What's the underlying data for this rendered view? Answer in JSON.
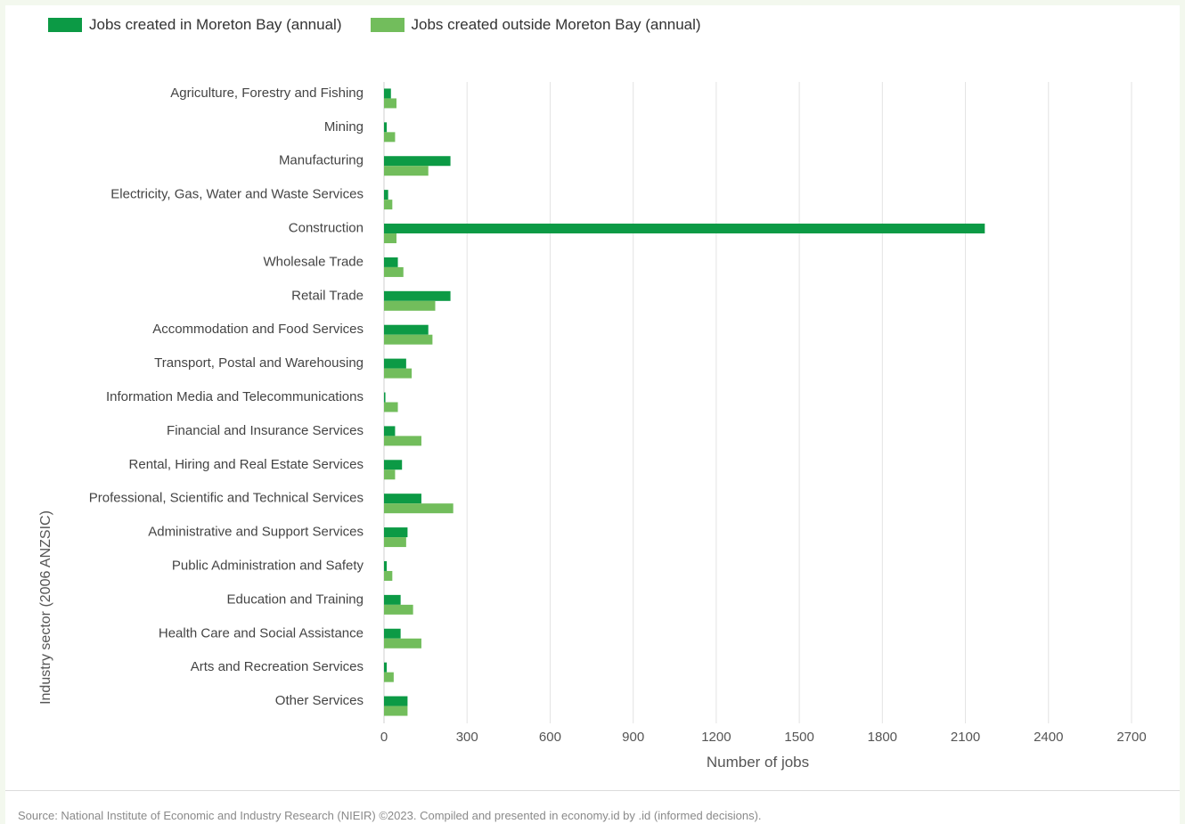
{
  "colors": {
    "inside": "#0c9a45",
    "outside": "#72bd5c",
    "grid": "#e3e3e3"
  },
  "source_text": "Source: National Institute of Economic and Industry Research (NIEIR) ©2023. Compiled and presented in economy.id by .id (informed decisions).",
  "chart_data": {
    "type": "bar",
    "orientation": "horizontal",
    "title": "",
    "xlabel": "Number of jobs",
    "ylabel": "Industry sector (2006 ANZSIC)",
    "xlim": [
      0,
      2700
    ],
    "xticks": [
      0,
      300,
      600,
      900,
      1200,
      1500,
      1800,
      2100,
      2400,
      2700
    ],
    "grid": true,
    "legend_position": "top-left",
    "categories": [
      "Agriculture, Forestry and Fishing",
      "Mining",
      "Manufacturing",
      "Electricity, Gas, Water and Waste Services",
      "Construction",
      "Wholesale Trade",
      "Retail Trade",
      "Accommodation and Food Services",
      "Transport, Postal and Warehousing",
      "Information Media and Telecommunications",
      "Financial and Insurance Services",
      "Rental, Hiring and Real Estate Services",
      "Professional, Scientific and Technical Services",
      "Administrative and Support Services",
      "Public Administration and Safety",
      "Education and Training",
      "Health Care and Social Assistance",
      "Arts and Recreation Services",
      "Other Services"
    ],
    "series": [
      {
        "name": "Jobs created in Moreton Bay (annual)",
        "values": [
          25,
          10,
          240,
          15,
          2170,
          50,
          240,
          160,
          80,
          5,
          40,
          65,
          135,
          85,
          10,
          60,
          60,
          10,
          85
        ]
      },
      {
        "name": "Jobs created outside Moreton Bay (annual)",
        "values": [
          45,
          40,
          160,
          30,
          45,
          70,
          185,
          175,
          100,
          50,
          135,
          40,
          250,
          80,
          30,
          105,
          135,
          35,
          85
        ]
      }
    ]
  }
}
